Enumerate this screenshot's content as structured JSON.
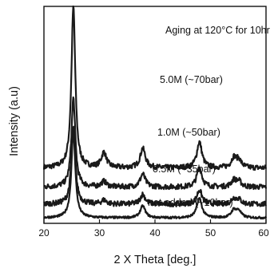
{
  "chart_data": {
    "type": "line",
    "title": "",
    "annotation": "Aging at 120°C for 10hr",
    "xlabel": "2 X Theta [deg.]",
    "ylabel": "Intensity (a.u)",
    "xlim": [
      20,
      60
    ],
    "x_ticks": [
      20,
      30,
      40,
      50,
      60
    ],
    "x_tick_labels": [
      "20",
      "30",
      "40",
      "50",
      "60"
    ],
    "y_ticks_shown": false,
    "grid": false,
    "legend": "none",
    "line_color": "#1a1a1a",
    "peaks_2theta": [
      25.3,
      30.8,
      37.8,
      48.0,
      54.2,
      55.1
    ],
    "series": [
      {
        "name": "5.0M (~70bar)",
        "baseline": 0.255,
        "peak_heights": [
          0.745,
          0.07,
          0.09,
          0.12,
          0.045,
          0.035
        ],
        "noise": 0.012
      },
      {
        "name": "1.0M (~50bar)",
        "baseline": 0.167,
        "peak_heights": [
          0.41,
          0.025,
          0.06,
          0.09,
          0.03,
          0.025
        ],
        "noise": 0.012
      },
      {
        "name": "0.5M (~35bar)",
        "baseline": 0.088,
        "peak_heights": [
          0.36,
          0.018,
          0.045,
          0.065,
          0.025,
          0.02
        ],
        "noise": 0.012
      },
      {
        "name": "not added (~10bar)",
        "baseline": 0.025,
        "peak_heights": [
          0.4,
          0.0,
          0.055,
          0.09,
          0.035,
          0.03
        ],
        "noise": 0.005
      }
    ]
  }
}
